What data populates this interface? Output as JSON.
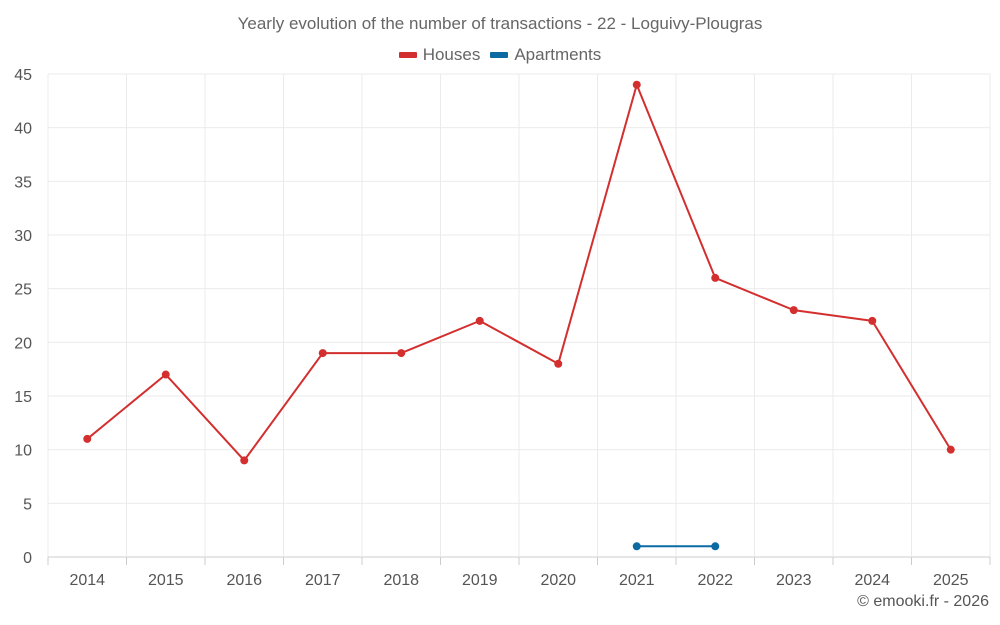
{
  "chart_data": {
    "type": "line",
    "title": "Yearly evolution of the number of transactions - 22 - Loguivy-Plougras",
    "categories": [
      "2014",
      "2015",
      "2016",
      "2017",
      "2018",
      "2019",
      "2020",
      "2021",
      "2022",
      "2023",
      "2024",
      "2025"
    ],
    "series": [
      {
        "name": "Houses",
        "color": "#d32f2f",
        "values": [
          11,
          17,
          9,
          19,
          19,
          22,
          18,
          44,
          26,
          23,
          22,
          10
        ]
      },
      {
        "name": "Apartments",
        "color": "#0b6aa2",
        "values": [
          null,
          null,
          null,
          null,
          null,
          null,
          null,
          1,
          1,
          null,
          null,
          null
        ]
      }
    ],
    "ylim": [
      0,
      45
    ],
    "yticks": [
      0,
      5,
      10,
      15,
      20,
      25,
      30,
      35,
      40,
      45
    ],
    "grid": true,
    "legend_position": "top-center"
  },
  "credit": "© emooki.fr - 2026"
}
